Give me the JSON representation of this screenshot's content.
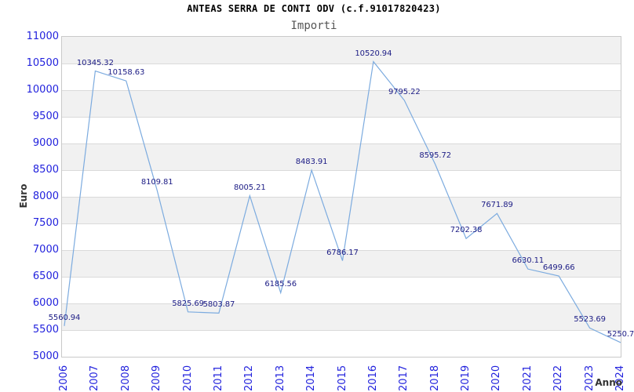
{
  "header": {
    "title": "ANTEAS SERRA DE CONTI ODV (c.f.91017820423)",
    "subtitle": "Importi"
  },
  "colors": {
    "axis_label_blue": "#2222dd",
    "point_label_navy": "#1c1c85",
    "line_blue": "#7cabdf",
    "band_gray": "#f1f1f1",
    "gridline_gray": "#dadada",
    "plot_border": "#c9c9c9",
    "title_black": "#000000",
    "subtitle_gray": "#555555",
    "axis_title_dark": "#333333"
  },
  "chart_data": {
    "type": "line",
    "title": "ANTEAS SERRA DE CONTI ODV (c.f.91017820423)",
    "subtitle": "Importi",
    "xlabel": "Anno",
    "ylabel": "Euro",
    "x": [
      2006,
      2007,
      2008,
      2009,
      2010,
      2011,
      2012,
      2013,
      2014,
      2015,
      2016,
      2017,
      2018,
      2019,
      2020,
      2021,
      2022,
      2023,
      2024
    ],
    "values": [
      5560.94,
      10345.32,
      10158.63,
      8109.81,
      5825.69,
      5803.87,
      8005.21,
      6185.56,
      8483.91,
      6786.17,
      10520.94,
      9795.22,
      8595.72,
      7202.38,
      7671.89,
      6630.11,
      6499.66,
      5523.69,
      5250.7
    ],
    "point_labels": [
      "5560.94",
      "10345.32",
      "10158.63",
      "8109.81",
      "5825.69",
      "5803.87",
      "8005.21",
      "6185.56",
      "8483.91",
      "6786.17",
      "10520.94",
      "9795.22",
      "8595.72",
      "7202.38",
      "7671.89",
      "6630.11",
      "6499.66",
      "5523.69",
      "5250.7"
    ],
    "y_ticks": [
      "11000",
      "10500",
      "10000",
      "9500",
      "9000",
      "8500",
      "8000",
      "7500",
      "7000",
      "6500",
      "6000",
      "5500",
      "5000"
    ],
    "ylim": [
      5000,
      11000
    ],
    "ytick_step": 500,
    "grid": true,
    "banding": "alternating-gray-every-500",
    "legend": "none",
    "markers": "none"
  }
}
